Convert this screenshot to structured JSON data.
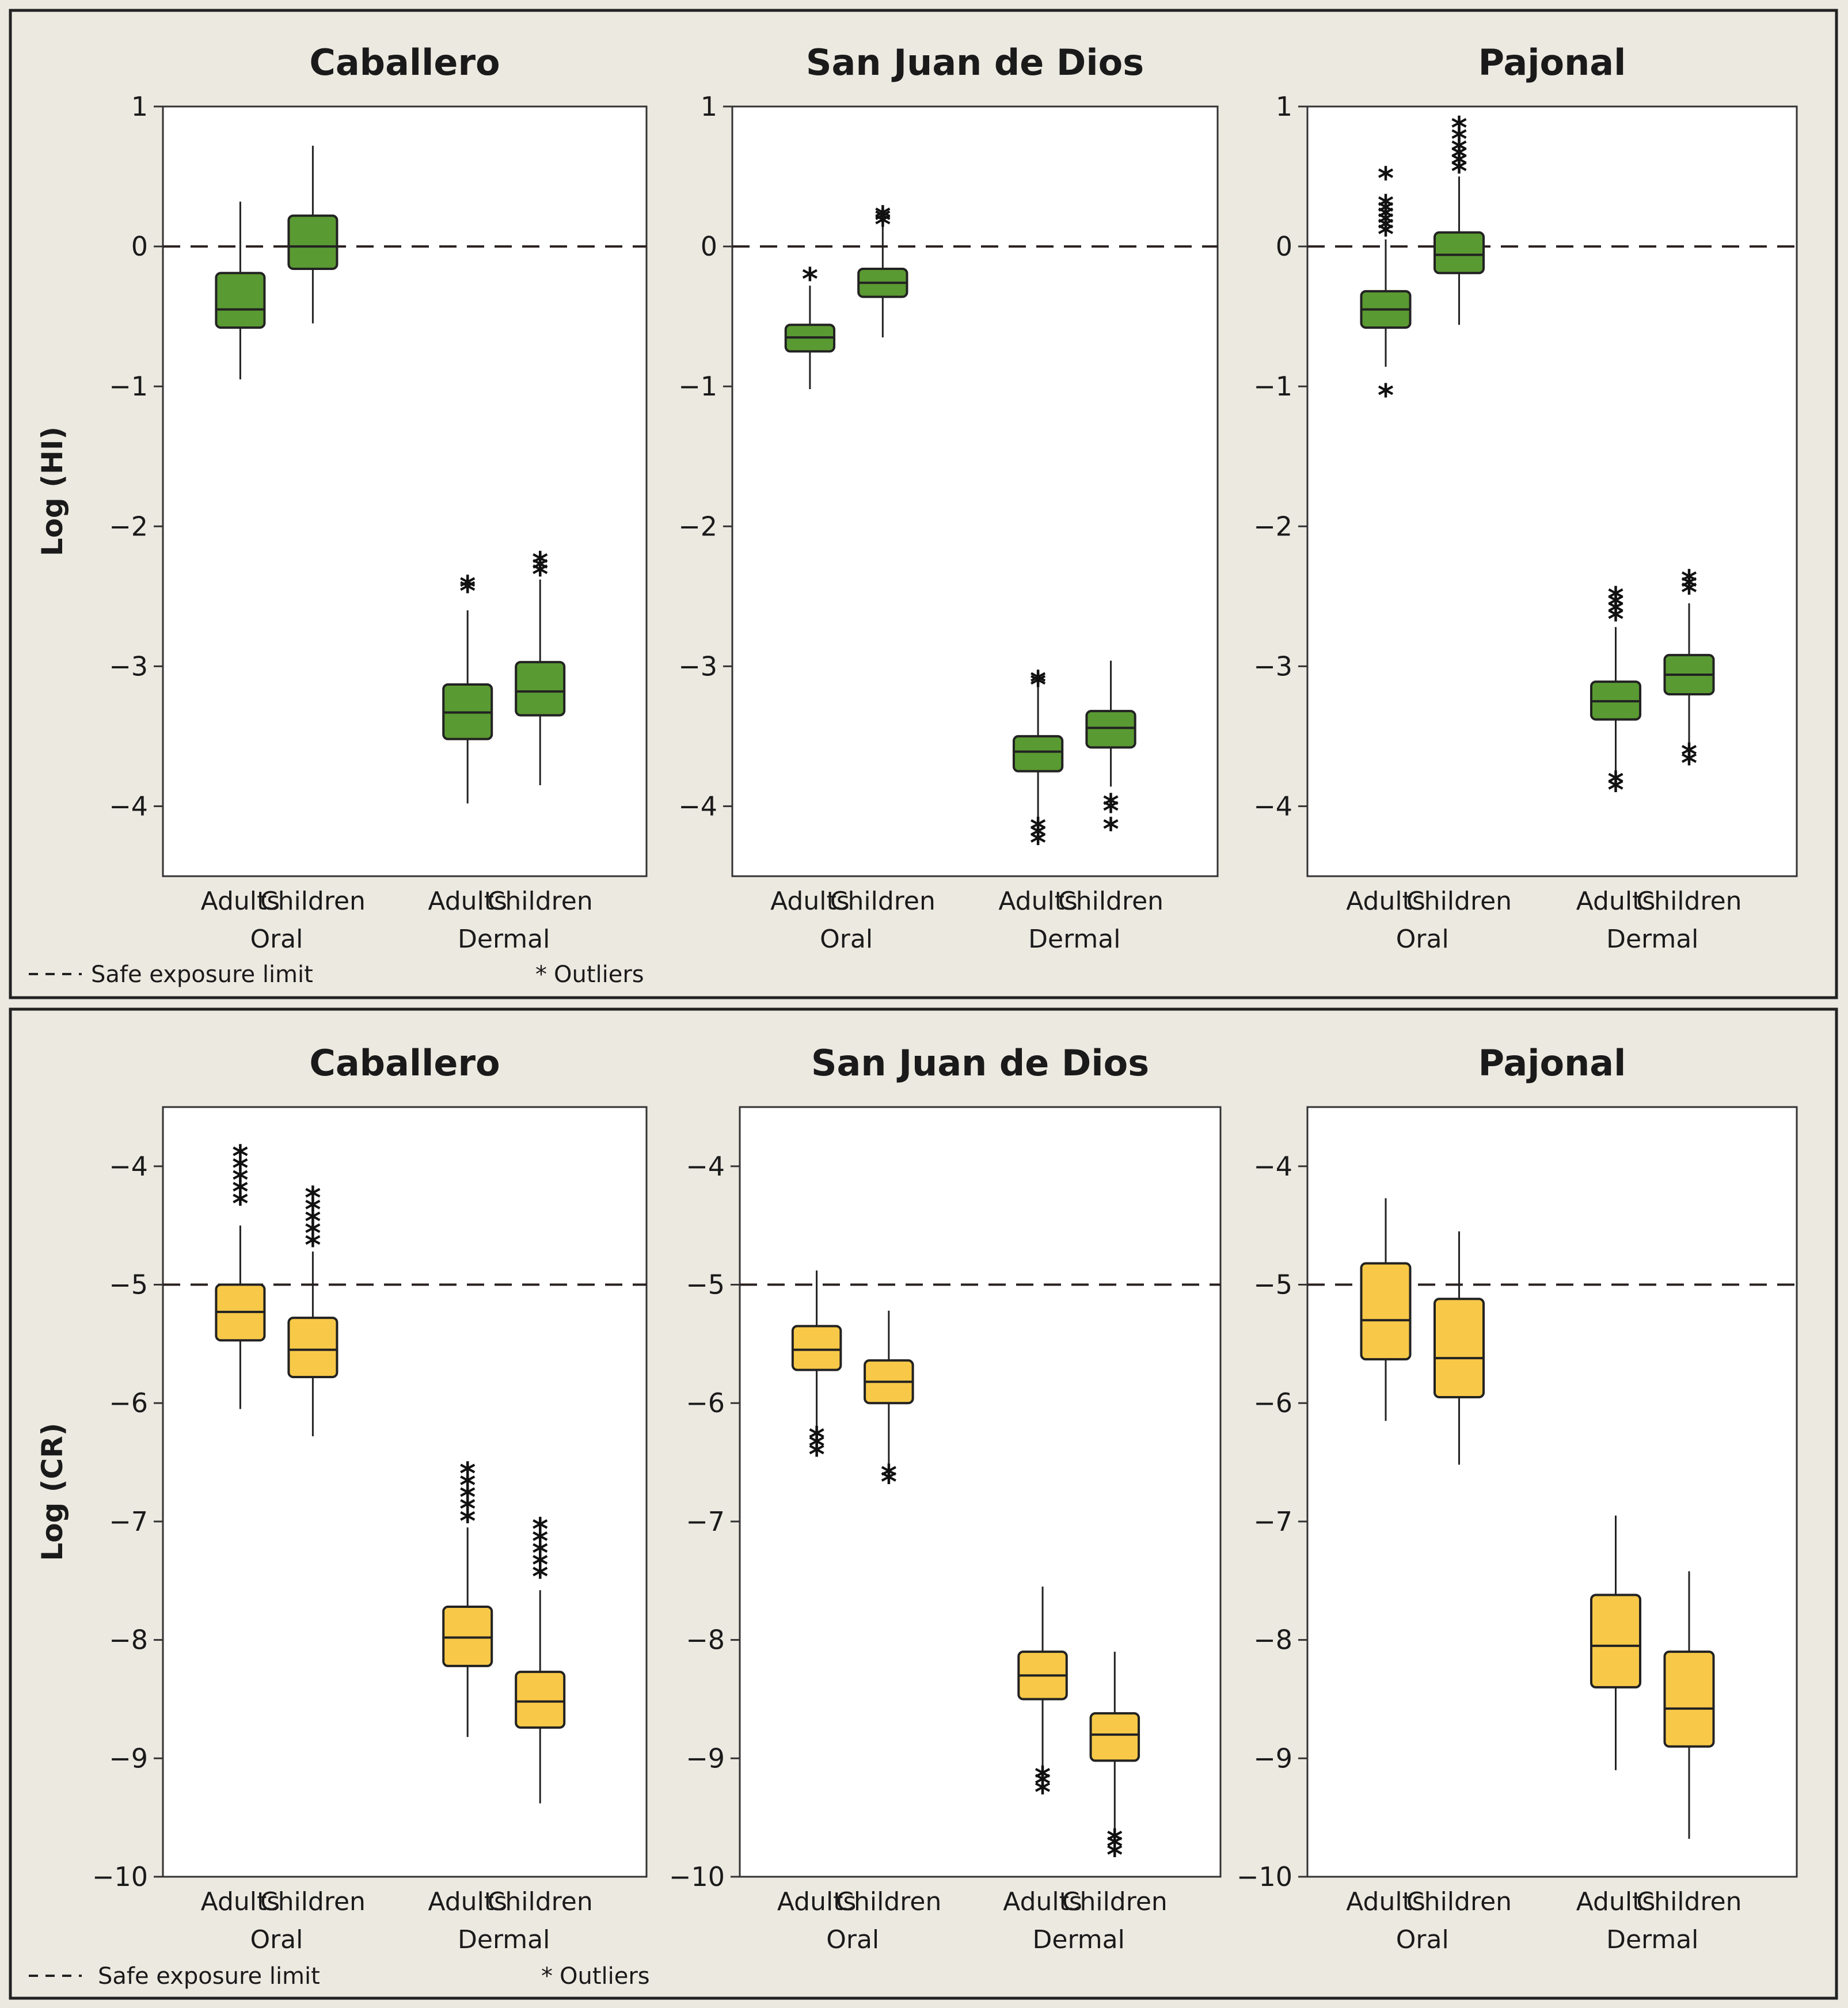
{
  "figure": {
    "legend": {
      "safe_limit": "Safe exposure limit",
      "outliers": "Outliers",
      "outlier_symbol": "*"
    },
    "colors": {
      "hi_box": "#5a9a32",
      "cr_box": "#f8c948",
      "outlier": "#111111",
      "safe_line": "#2a2020"
    }
  },
  "chart_data": [
    {
      "type": "boxplot",
      "panel": "top",
      "title": "Caballero",
      "ylabel": "Log (HI)",
      "ylim": [
        -4.5,
        1
      ],
      "yticks": [
        1,
        0,
        -1,
        -2,
        -3,
        -4
      ],
      "yticklabels": [
        "1",
        "0",
        "−1",
        "−2",
        "−3",
        "−4"
      ],
      "reference_line": 0,
      "groups": [
        "Oral",
        "Dermal"
      ],
      "categories": [
        "Adults",
        "Children",
        "Adults",
        "Children"
      ],
      "boxes": [
        {
          "group": "Oral",
          "category": "Adults",
          "whisker_low": -0.95,
          "q1": -0.58,
          "median": -0.45,
          "q3": -0.19,
          "whisker_high": 0.32,
          "outliers": []
        },
        {
          "group": "Oral",
          "category": "Children",
          "whisker_low": -0.55,
          "q1": -0.16,
          "median": 0.0,
          "q3": 0.22,
          "whisker_high": 0.72,
          "outliers": []
        },
        {
          "group": "Dermal",
          "category": "Adults",
          "whisker_low": -3.98,
          "q1": -3.52,
          "median": -3.33,
          "q3": -3.13,
          "whisker_high": -2.6,
          "outliers": [
            -2.42,
            -2.45
          ]
        },
        {
          "group": "Dermal",
          "category": "Children",
          "whisker_low": -3.85,
          "q1": -3.35,
          "median": -3.18,
          "q3": -2.97,
          "whisker_high": -2.38,
          "outliers": [
            -2.25,
            -2.29,
            -2.33
          ]
        }
      ]
    },
    {
      "type": "boxplot",
      "panel": "top",
      "title": "San Juan de Dios",
      "ylabel": "",
      "ylim": [
        -4.5,
        1
      ],
      "yticks": [
        1,
        0,
        -1,
        -2,
        -3,
        -4
      ],
      "yticklabels": [
        "1",
        "0",
        "−1",
        "−2",
        "−3",
        "−4"
      ],
      "reference_line": 0,
      "groups": [
        "Oral",
        "Dermal"
      ],
      "categories": [
        "Adults",
        "Children",
        "Adults",
        "Children"
      ],
      "boxes": [
        {
          "group": "Oral",
          "category": "Adults",
          "whisker_low": -1.02,
          "q1": -0.75,
          "median": -0.65,
          "q3": -0.56,
          "whisker_high": -0.28,
          "outliers": [
            -0.22
          ]
        },
        {
          "group": "Oral",
          "category": "Children",
          "whisker_low": -0.65,
          "q1": -0.36,
          "median": -0.26,
          "q3": -0.16,
          "whisker_high": 0.14,
          "outliers": [
            0.17,
            0.2,
            0.22
          ]
        },
        {
          "group": "Dermal",
          "category": "Adults",
          "whisker_low": -4.1,
          "q1": -3.75,
          "median": -3.61,
          "q3": -3.5,
          "whisker_high": -3.14,
          "outliers": [
            -3.1,
            -3.12,
            -4.15,
            -4.2,
            -4.25
          ]
        },
        {
          "group": "Dermal",
          "category": "Children",
          "whisker_low": -3.86,
          "q1": -3.58,
          "median": -3.44,
          "q3": -3.32,
          "whisker_high": -2.96,
          "outliers": [
            -3.98,
            -4.02,
            -4.15
          ]
        }
      ]
    },
    {
      "type": "boxplot",
      "panel": "top",
      "title": "Pajonal",
      "ylabel": "",
      "ylim": [
        -4.5,
        1
      ],
      "yticks": [
        1,
        0,
        -1,
        -2,
        -3,
        -4
      ],
      "yticklabels": [
        "1",
        "0",
        "−1",
        "−2",
        "−3",
        "−4"
      ],
      "reference_line": 0,
      "groups": [
        "Oral",
        "Dermal"
      ],
      "categories": [
        "Adults",
        "Children",
        "Adults",
        "Children"
      ],
      "boxes": [
        {
          "group": "Oral",
          "category": "Adults",
          "whisker_low": -0.86,
          "q1": -0.58,
          "median": -0.45,
          "q3": -0.32,
          "whisker_high": 0.05,
          "outliers": [
            0.1,
            0.14,
            0.18,
            0.22,
            0.26,
            0.3,
            0.5,
            -1.05
          ]
        },
        {
          "group": "Oral",
          "category": "Children",
          "whisker_low": -0.56,
          "q1": -0.19,
          "median": -0.06,
          "q3": 0.1,
          "whisker_high": 0.5,
          "outliers": [
            0.55,
            0.6,
            0.65,
            0.7,
            0.78,
            0.86
          ]
        },
        {
          "group": "Dermal",
          "category": "Adults",
          "whisker_low": -3.76,
          "q1": -3.38,
          "median": -3.25,
          "q3": -3.11,
          "whisker_high": -2.72,
          "outliers": [
            -2.5,
            -2.55,
            -2.6,
            -2.65,
            -3.82,
            -3.87
          ]
        },
        {
          "group": "Dermal",
          "category": "Children",
          "whisker_low": -3.58,
          "q1": -3.2,
          "median": -3.06,
          "q3": -2.92,
          "whisker_high": -2.55,
          "outliers": [
            -2.38,
            -2.42,
            -2.46,
            -3.62,
            -3.68
          ]
        }
      ]
    },
    {
      "type": "boxplot",
      "panel": "bottom",
      "title": "Caballero",
      "ylabel": "Log (CR)",
      "ylim": [
        -10,
        -3.5
      ],
      "yticks": [
        -4,
        -5,
        -6,
        -7,
        -8,
        -9,
        -10
      ],
      "yticklabels": [
        "−4",
        "−5",
        "−6",
        "−7",
        "−8",
        "−9",
        "−10"
      ],
      "reference_line": -5,
      "groups": [
        "Oral",
        "Dermal"
      ],
      "categories": [
        "Adults",
        "Children",
        "Adults",
        "Children"
      ],
      "boxes": [
        {
          "group": "Oral",
          "category": "Adults",
          "whisker_low": -6.05,
          "q1": -5.47,
          "median": -5.23,
          "q3": -5.0,
          "whisker_high": -4.5,
          "outliers": [
            -3.9,
            -4.0,
            -4.1,
            -4.2,
            -4.3
          ]
        },
        {
          "group": "Oral",
          "category": "Children",
          "whisker_low": -6.28,
          "q1": -5.78,
          "median": -5.55,
          "q3": -5.28,
          "whisker_high": -4.72,
          "outliers": [
            -4.25,
            -4.35,
            -4.45,
            -4.55,
            -4.65
          ]
        },
        {
          "group": "Dermal",
          "category": "Adults",
          "whisker_low": -8.82,
          "q1": -8.22,
          "median": -7.98,
          "q3": -7.72,
          "whisker_high": -7.05,
          "outliers": [
            -6.58,
            -6.68,
            -6.78,
            -6.88,
            -6.98
          ]
        },
        {
          "group": "Dermal",
          "category": "Children",
          "whisker_low": -9.38,
          "q1": -8.74,
          "median": -8.52,
          "q3": -8.27,
          "whisker_high": -7.58,
          "outliers": [
            -7.05,
            -7.15,
            -7.25,
            -7.35,
            -7.45
          ]
        }
      ]
    },
    {
      "type": "boxplot",
      "panel": "bottom",
      "title": "San Juan de Dios",
      "ylabel": "",
      "ylim": [
        -10,
        -3.5
      ],
      "yticks": [
        -4,
        -5,
        -6,
        -7,
        -8,
        -9,
        -10
      ],
      "yticklabels": [
        "−4",
        "−5",
        "−6",
        "−7",
        "−8",
        "−9",
        "−10"
      ],
      "reference_line": -5,
      "groups": [
        "Oral",
        "Dermal"
      ],
      "categories": [
        "Adults",
        "Children",
        "Adults",
        "Children"
      ],
      "boxes": [
        {
          "group": "Oral",
          "category": "Adults",
          "whisker_low": -6.2,
          "q1": -5.72,
          "median": -5.55,
          "q3": -5.35,
          "whisker_high": -4.88,
          "outliers": [
            -6.28,
            -6.35,
            -6.42
          ]
        },
        {
          "group": "Oral",
          "category": "Children",
          "whisker_low": -6.55,
          "q1": -6.0,
          "median": -5.82,
          "q3": -5.64,
          "whisker_high": -5.22,
          "outliers": [
            -6.6,
            -6.65
          ]
        },
        {
          "group": "Dermal",
          "category": "Adults",
          "whisker_low": -9.1,
          "q1": -8.5,
          "median": -8.3,
          "q3": -8.1,
          "whisker_high": -7.55,
          "outliers": [
            -9.15,
            -9.2,
            -9.27
          ]
        },
        {
          "group": "Dermal",
          "category": "Children",
          "whisker_low": -9.62,
          "q1": -9.02,
          "median": -8.8,
          "q3": -8.62,
          "whisker_high": -8.1,
          "outliers": [
            -9.68,
            -9.73,
            -9.8
          ]
        }
      ]
    },
    {
      "type": "boxplot",
      "panel": "bottom",
      "title": "Pajonal",
      "ylabel": "",
      "ylim": [
        -10,
        -3.5
      ],
      "yticks": [
        -4,
        -5,
        -6,
        -7,
        -8,
        -9,
        -10
      ],
      "yticklabels": [
        "−4",
        "−5",
        "−6",
        "−7",
        "−8",
        "−9",
        "−10"
      ],
      "reference_line": -5,
      "groups": [
        "Oral",
        "Dermal"
      ],
      "categories": [
        "Adults",
        "Children",
        "Adults",
        "Children"
      ],
      "boxes": [
        {
          "group": "Oral",
          "category": "Adults",
          "whisker_low": -6.15,
          "q1": -5.63,
          "median": -5.3,
          "q3": -4.82,
          "whisker_high": -4.27,
          "outliers": []
        },
        {
          "group": "Oral",
          "category": "Children",
          "whisker_low": -6.52,
          "q1": -5.95,
          "median": -5.62,
          "q3": -5.12,
          "whisker_high": -4.55,
          "outliers": []
        },
        {
          "group": "Dermal",
          "category": "Adults",
          "whisker_low": -9.1,
          "q1": -8.4,
          "median": -8.05,
          "q3": -7.62,
          "whisker_high": -6.95,
          "outliers": []
        },
        {
          "group": "Dermal",
          "category": "Children",
          "whisker_low": -9.68,
          "q1": -8.9,
          "median": -8.58,
          "q3": -8.1,
          "whisker_high": -7.42,
          "outliers": []
        }
      ]
    }
  ]
}
